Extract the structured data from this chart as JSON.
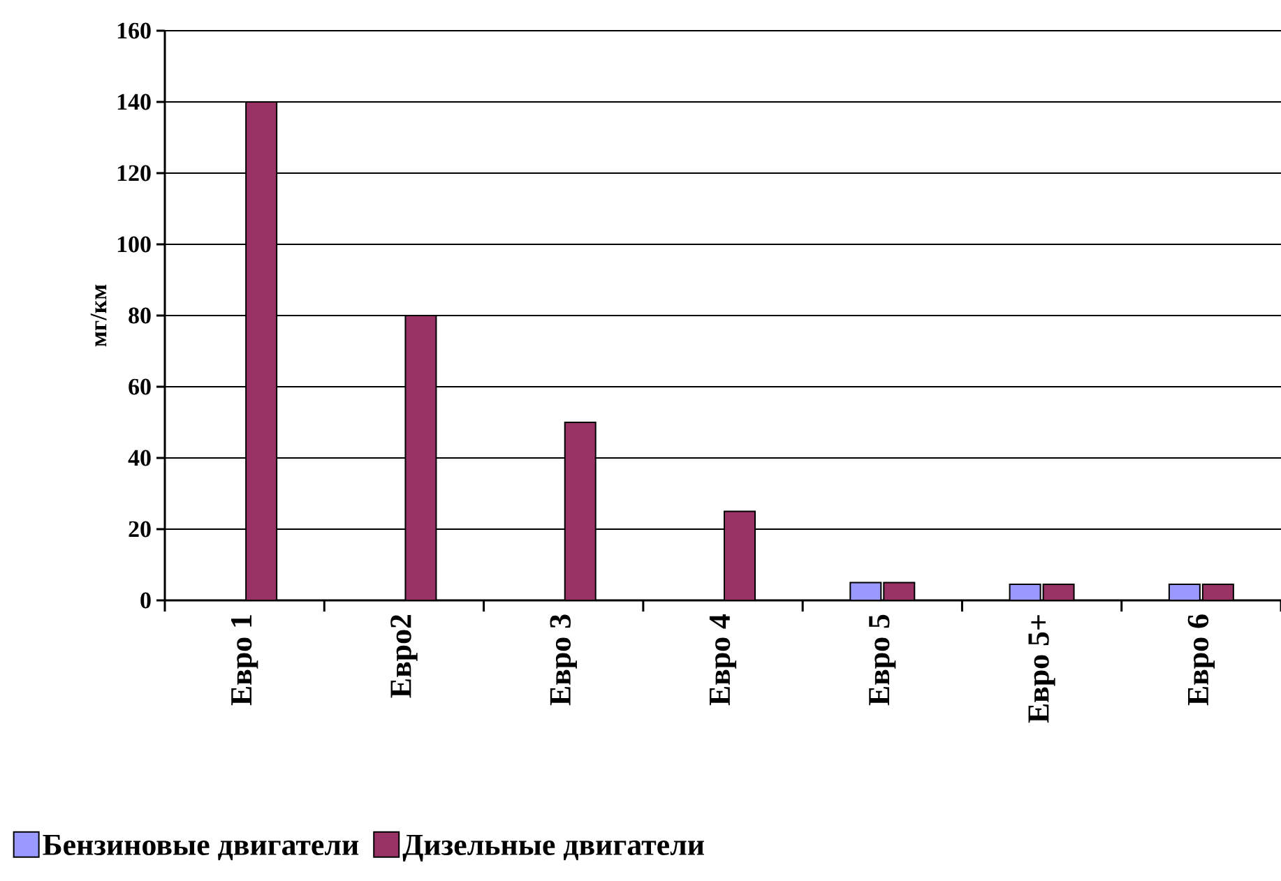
{
  "chart_data": {
    "type": "bar",
    "ylabel": "мг/км",
    "categories": [
      "Евро 1",
      "Евро2",
      "Евро 3",
      "Евро 4",
      "Евро 5",
      "Евро 5+",
      "Евро 6"
    ],
    "series": [
      {
        "name": "Бензиновые двигатели",
        "color": "#9999ff",
        "values": [
          null,
          null,
          null,
          null,
          5,
          4.5,
          4.5
        ]
      },
      {
        "name": "Дизельные двигатели",
        "color": "#993366",
        "values": [
          140,
          80,
          50,
          25,
          5,
          4.5,
          4.5
        ]
      }
    ],
    "ylim": [
      0,
      160
    ],
    "yticks": [
      0,
      20,
      40,
      60,
      80,
      100,
      120,
      140,
      160
    ],
    "grid": "y",
    "legend": "bottom left"
  }
}
